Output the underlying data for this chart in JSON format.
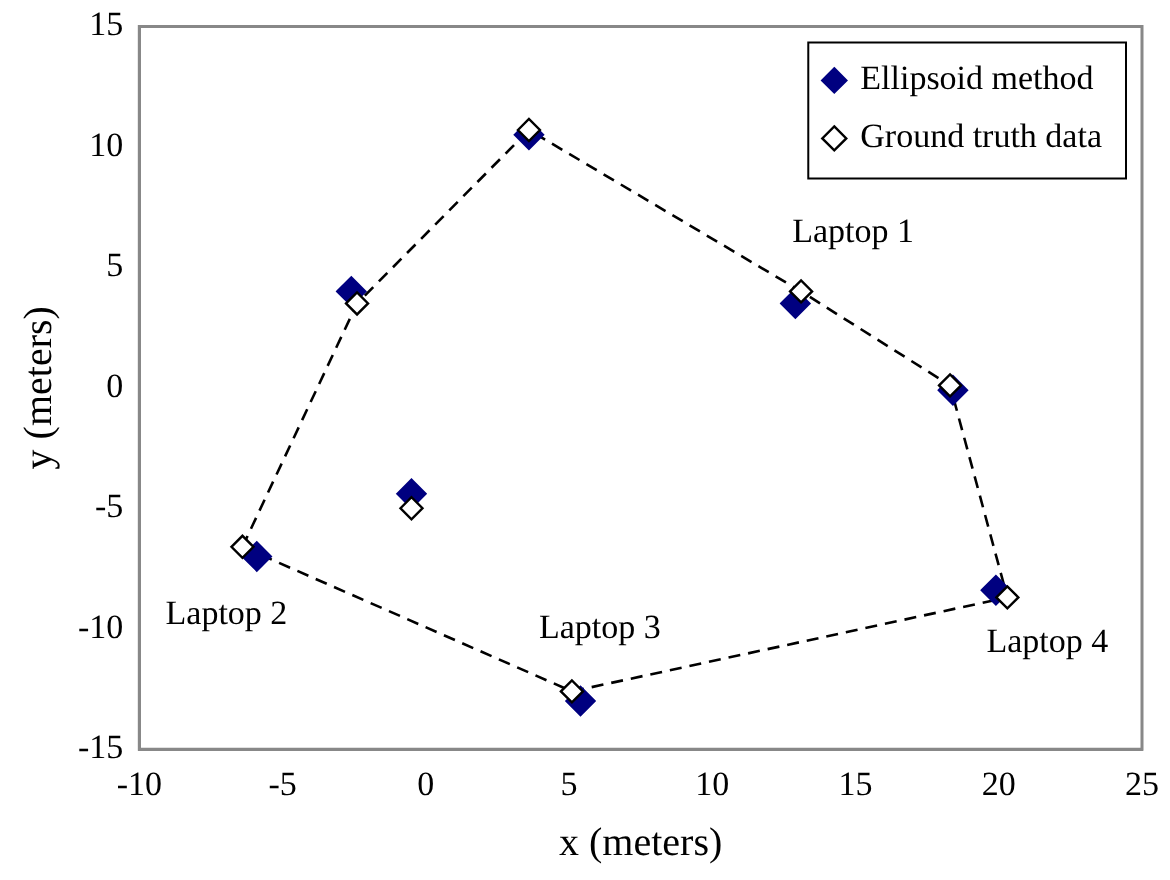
{
  "chart_data": {
    "type": "scatter",
    "xlabel": "x (meters)",
    "ylabel": "y (meters)",
    "xlim": [
      -10,
      25
    ],
    "xticks": [
      -10,
      -5,
      0,
      5,
      10,
      15,
      20,
      25
    ],
    "ylim": [
      -15,
      15
    ],
    "yticks": [
      -15,
      -10,
      -5,
      0,
      5,
      10,
      15
    ],
    "grid": false,
    "legend": "top right",
    "marker": "diamond",
    "series": [
      {
        "type": "line",
        "color": "#000000",
        "line_style": "dashed",
        "marker": "none",
        "x": [
          -6.4,
          -2.4,
          3.6,
          13.1,
          18.3,
          20.3
        ],
        "values": [
          -6.6,
          3.5,
          10.7,
          4.0,
          0.1,
          -8.7
        ]
      },
      {
        "type": "line",
        "color": "#000000",
        "line_style": "dashed",
        "marker": "none",
        "x": [
          -6.4,
          5.1,
          20.3
        ],
        "values": [
          -6.6,
          -12.6,
          -8.7
        ]
      },
      {
        "name": "Ellipsoid method",
        "color": "#000080",
        "x": [
          3.6,
          -2.6,
          12.9,
          18.4,
          -0.5,
          -5.9,
          5.4,
          19.9
        ],
        "values": [
          10.5,
          4.0,
          3.5,
          -0.1,
          -4.4,
          -7.0,
          -13.0,
          -8.4
        ]
      },
      {
        "name": "Ground truth data",
        "color": "#000000",
        "x": [
          3.6,
          -2.4,
          13.1,
          18.3,
          -0.5,
          -6.4,
          5.1,
          20.3
        ],
        "values": [
          10.7,
          3.5,
          4.0,
          0.1,
          -5.0,
          -6.6,
          -12.6,
          -8.7
        ]
      }
    ],
    "annotations": [
      {
        "text": "Laptop 1",
        "x": 13.1,
        "y": 4.0
      },
      {
        "text": "Laptop 2",
        "x": -6.4,
        "y": -6.6
      },
      {
        "text": "Laptop 3",
        "x": 5.1,
        "y": -12.6
      },
      {
        "text": "Laptop 4",
        "x": 20.3,
        "y": -8.7
      }
    ]
  }
}
